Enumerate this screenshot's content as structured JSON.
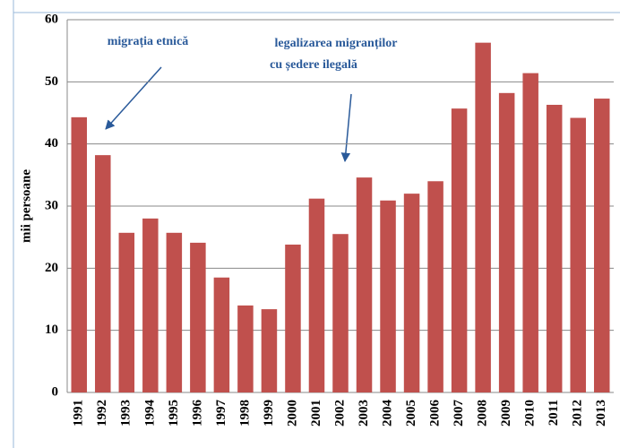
{
  "chart_data": {
    "type": "bar",
    "y_label": "mii persoane",
    "annotations": [
      [
        "migrația etnică"
      ],
      [
        "legalizarea migranților",
        "cu ședere ilegală"
      ]
    ],
    "categories": [
      "1991",
      "1992",
      "1993",
      "1994",
      "1995",
      "1996",
      "1997",
      "1998",
      "1999",
      "2000",
      "2001",
      "2002",
      "2003",
      "2004",
      "2005",
      "2006",
      "2007",
      "2008",
      "2009",
      "2010",
      "2011",
      "2012",
      "2013"
    ],
    "values": [
      44.3,
      38.2,
      25.7,
      28,
      25.7,
      24.1,
      18.5,
      14,
      13.4,
      23.8,
      31.2,
      25.5,
      34.6,
      30.9,
      32,
      34,
      45.7,
      56.3,
      48.2,
      51.4,
      46.3,
      44.2,
      47.3
    ],
    "color": "#c0504d",
    "ylim": [
      0,
      60
    ],
    "yticks": [
      0,
      10,
      20,
      30,
      40,
      50,
      60
    ],
    "grid": true
  }
}
